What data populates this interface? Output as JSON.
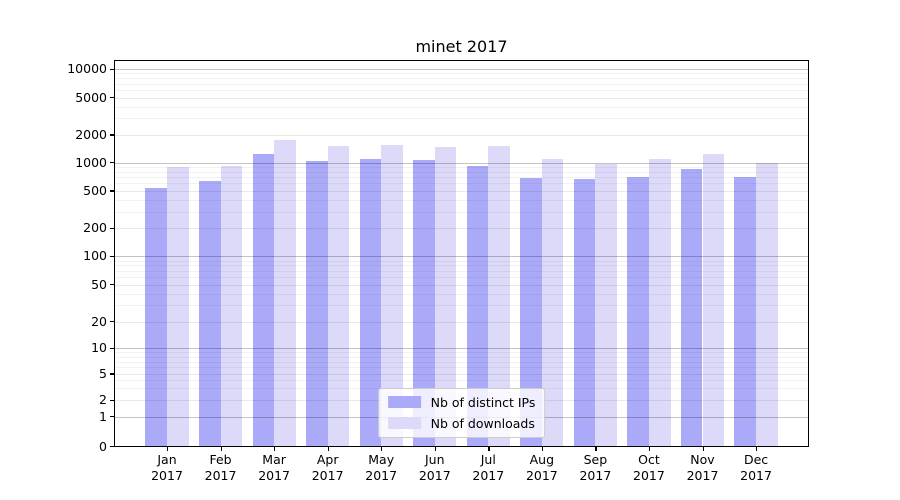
{
  "chart_data": {
    "type": "bar",
    "title": "minet 2017",
    "yscale": "symlog",
    "grid": true,
    "legend_position": "lower center",
    "ylim": [
      0,
      12500
    ],
    "y_ticks": [
      0,
      1,
      2,
      5,
      10,
      20,
      50,
      100,
      200,
      500,
      1000,
      2000,
      5000,
      10000
    ],
    "categories": [
      "Jan 2017",
      "Feb 2017",
      "Mar 2017",
      "Apr 2017",
      "May 2017",
      "Jun 2017",
      "Jul 2017",
      "Aug 2017",
      "Sep 2017",
      "Oct 2017",
      "Nov 2017",
      "Dec 2017"
    ],
    "series": [
      {
        "name": "Nb of distinct IPs",
        "color": "#abaaf8",
        "values": [
          540,
          640,
          1250,
          1040,
          1090,
          1060,
          920,
          690,
          660,
          700,
          850,
          700
        ]
      },
      {
        "name": "Nb of downloads",
        "color": "#dcdaf8",
        "values": [
          900,
          920,
          1750,
          1530,
          1570,
          1470,
          1530,
          1110,
          980,
          1100,
          1230,
          990
        ]
      }
    ],
    "colors": {
      "plot_background": "#ffffff",
      "spine": "#000000",
      "grid_major": "#c4c4c4",
      "grid_labeled": "#e8e8e8",
      "grid_minor": "#f2f2f2",
      "legend_border": "#cccccc"
    }
  }
}
